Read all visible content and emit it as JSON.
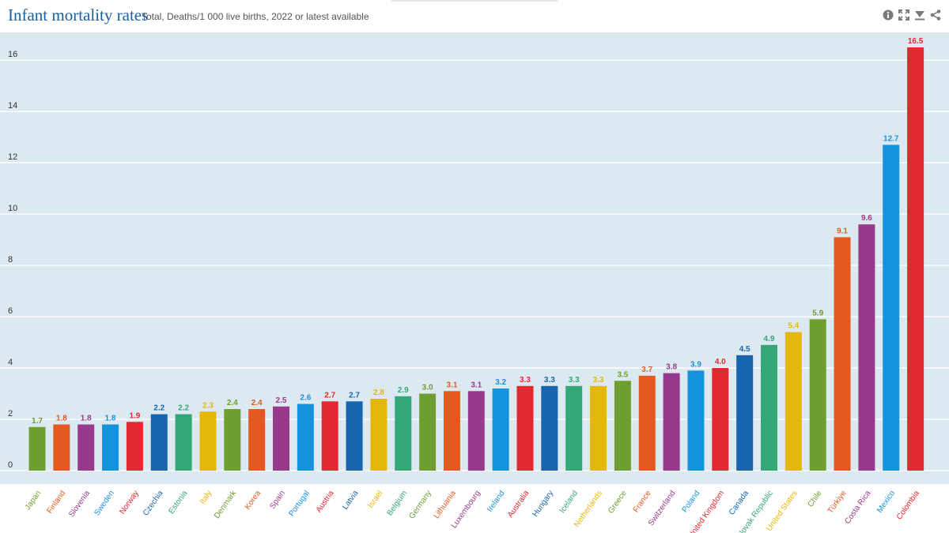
{
  "header": {
    "title": "Infant mortality rates",
    "subtitle": "Total, Deaths/1 000 live births, 2022 or latest available"
  },
  "toolbar": {
    "icons": [
      "info-icon",
      "expand-icon",
      "download-icon",
      "share-icon"
    ]
  },
  "chart_data": {
    "type": "bar",
    "title": "Infant mortality rates",
    "subtitle": "Total, Deaths/1 000 live births, 2022 or latest available",
    "xlabel": "",
    "ylabel": "",
    "ylim": [
      0,
      16.5
    ],
    "yticks": [
      0,
      2,
      4,
      6,
      8,
      10,
      12,
      14,
      16
    ],
    "grid": true,
    "categories": [
      "Japan",
      "Finland",
      "Slovenia",
      "Sweden",
      "Norway",
      "Czechia",
      "Estonia",
      "Italy",
      "Denmark",
      "Korea",
      "Spain",
      "Portugal",
      "Austria",
      "Latvia",
      "Israel",
      "Belgium",
      "Germany",
      "Lithuania",
      "Luxembourg",
      "Ireland",
      "Australia",
      "Hungary",
      "Iceland",
      "Netherlands",
      "Greece",
      "France",
      "Switzerland",
      "Poland",
      "United Kingdom",
      "Canada",
      "Slovak Republic",
      "United States",
      "Chile",
      "Türkiye",
      "Costa Rica",
      "Mexico",
      "Colombia"
    ],
    "values": [
      1.7,
      1.8,
      1.8,
      1.8,
      1.9,
      2.2,
      2.2,
      2.3,
      2.4,
      2.4,
      2.5,
      2.6,
      2.7,
      2.7,
      2.8,
      2.9,
      3.0,
      3.1,
      3.1,
      3.2,
      3.3,
      3.3,
      3.3,
      3.3,
      3.5,
      3.7,
      3.8,
      3.9,
      4.0,
      4.5,
      4.9,
      5.4,
      5.9,
      9.1,
      9.6,
      12.7,
      16.5
    ],
    "value_labels": [
      "1.7",
      "1.8",
      "1.8",
      "1.8",
      "1.9",
      "2.2",
      "2.2",
      "2.3",
      "2.4",
      "2.4",
      "2.5",
      "2.6",
      "2.7",
      "2.7",
      "2.8",
      "2.9",
      "3.0",
      "3.1",
      "3.1",
      "3.2",
      "3.3",
      "3.3",
      "3.3",
      "3.3",
      "3.5",
      "3.7",
      "3.8",
      "3.9",
      "4.0",
      "4.5",
      "4.9",
      "5.4",
      "5.9",
      "9.1",
      "9.6",
      "12.7",
      "16.5"
    ],
    "colors": [
      "#6d9e2f",
      "#e35a21",
      "#983a8b",
      "#1592dd",
      "#e4282f",
      "#1665ae",
      "#33a876",
      "#e5b70a",
      "#6d9e2f",
      "#e35a21",
      "#983a8b",
      "#1592dd",
      "#e4282f",
      "#1665ae",
      "#e5b70a",
      "#33a876",
      "#6d9e2f",
      "#e35a21",
      "#983a8b",
      "#1592dd",
      "#e4282f",
      "#1665ae",
      "#33a876",
      "#e5b70a",
      "#6d9e2f",
      "#e35a21",
      "#983a8b",
      "#1592dd",
      "#e4282f",
      "#1665ae",
      "#33a876",
      "#e5b70a",
      "#6d9e2f",
      "#e35a21",
      "#983a8b",
      "#1592dd",
      "#e4282f"
    ]
  },
  "theme": {
    "plot_background": "#dde9f1",
    "grid_color": "#ffffff",
    "title_color": "#1a5fa0",
    "tick_color": "#333333",
    "icon_color": "#7a7a7a"
  }
}
